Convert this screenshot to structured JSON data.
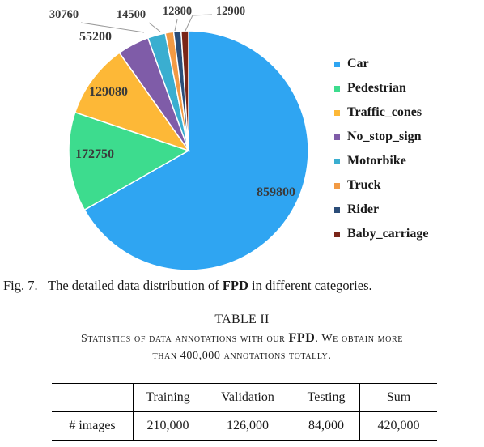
{
  "chart_data": {
    "type": "pie",
    "categories": [
      "Car",
      "Pedestrian",
      "Traffic_cones",
      "No_stop_sign",
      "Motorbike",
      "Truck",
      "Rider",
      "Baby_carriage"
    ],
    "values": [
      859800,
      172750,
      129080,
      55200,
      30760,
      14500,
      12800,
      12900
    ],
    "value_labels": [
      "859800",
      "172750",
      "129080",
      "55200",
      "30760",
      "14500",
      "12800",
      "12900"
    ],
    "colors": [
      "#2fa5f2",
      "#3ddc8e",
      "#fdb837",
      "#7f5ca8",
      "#3aaed0",
      "#f29a44",
      "#2b4d78",
      "#7a2518"
    ],
    "legend_placement": "right",
    "start_angle_deg": 0
  },
  "caption": {
    "prefix": "Fig. 7.",
    "text_before": "The detailed data distribution of",
    "bold": "FPD",
    "text_after": "in different categories."
  },
  "table": {
    "title": "TABLE II",
    "subtitle_line1_a": "Statistics of data annotations with our",
    "subtitle_line1_bold": "FPD",
    "subtitle_line1_b": ". We obtain more",
    "subtitle_line2": "than 400,000 annotations totally.",
    "headers": [
      "",
      "Training",
      "Validation",
      "Testing",
      "Sum"
    ],
    "rows": [
      [
        "# images",
        "210,000",
        "126,000",
        "84,000",
        "420,000"
      ]
    ]
  }
}
